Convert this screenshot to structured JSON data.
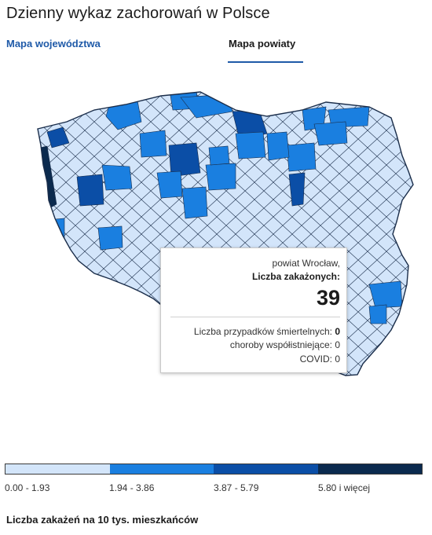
{
  "header": {
    "title": "Dzienny wykaz zachorowań w Polsce"
  },
  "tabs": [
    {
      "label": "Mapa województwa",
      "active": false
    },
    {
      "label": "Mapa powiaty",
      "active": true
    }
  ],
  "tooltip": {
    "location": "powiat Wrocław,",
    "cases_label": "Liczba zakażonych:",
    "cases_value": "39",
    "deaths_label": "Liczba przypadków śmiertelnych:",
    "deaths_value": "0",
    "comorbidities_label": "choroby współistniejące:",
    "comorbidities_value": "0",
    "covid_label": "COVID:",
    "covid_value": "0"
  },
  "legend": {
    "items": [
      {
        "label": "0.00 - 1.93",
        "color": "#d3e5fa"
      },
      {
        "label": "1.94 - 3.86",
        "color": "#1a7fe0"
      },
      {
        "label": "3.87 - 5.79",
        "color": "#0b4ea6"
      },
      {
        "label": "5.80 i więcej",
        "color": "#0b2a4e"
      }
    ]
  },
  "footer": {
    "note": "Liczba zakażeń na 10 tys. mieszkańców"
  },
  "colors": {
    "accent": "#1f5aa8",
    "border": "#1a2d4a"
  }
}
